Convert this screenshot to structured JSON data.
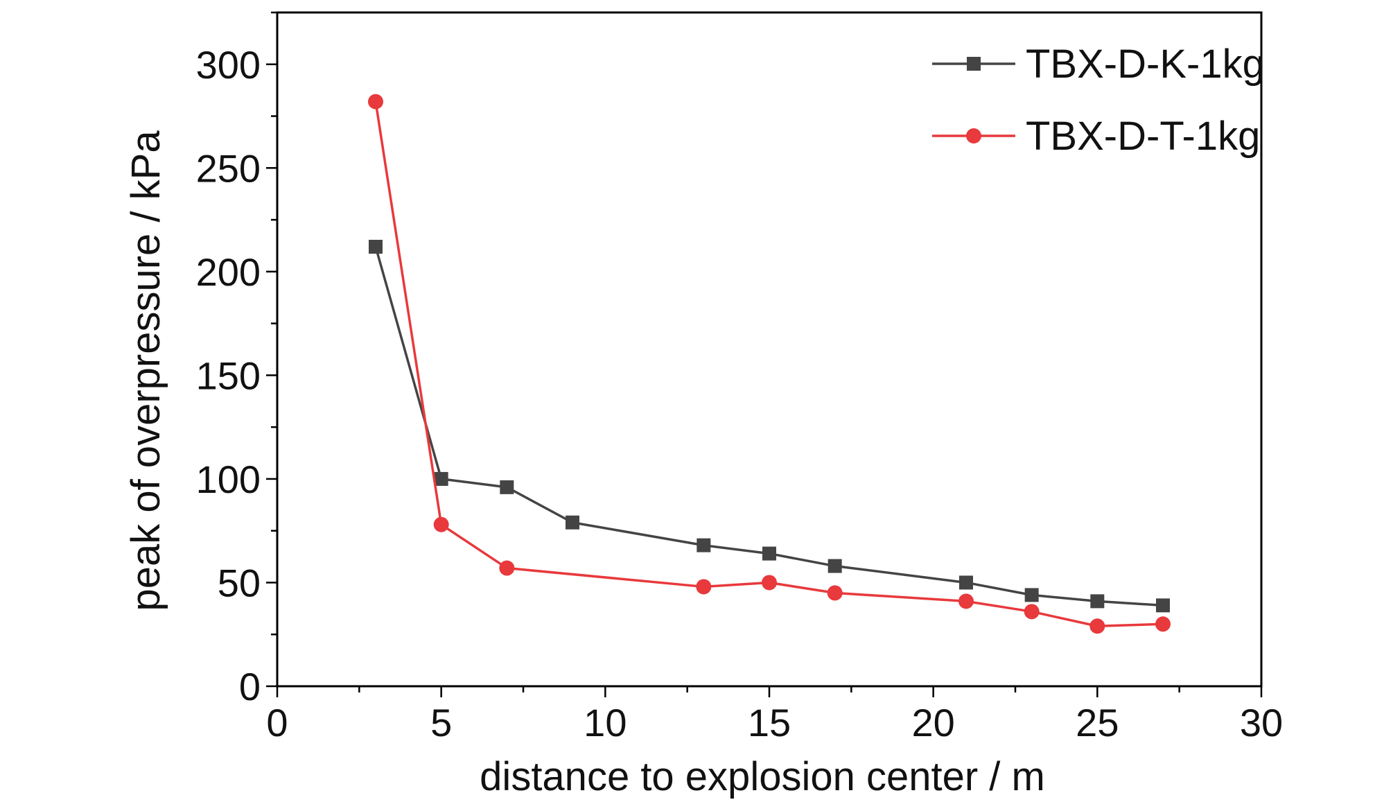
{
  "chart_data": {
    "type": "line",
    "title": "",
    "xlabel": "distance to explosion center / m",
    "ylabel": "peak of overpressure / kPa",
    "xlim": [
      0,
      30
    ],
    "ylim": [
      0,
      325
    ],
    "xticks": [
      0,
      5,
      10,
      15,
      20,
      25,
      30
    ],
    "yticks": [
      0,
      50,
      100,
      150,
      200,
      250,
      300
    ],
    "grid": false,
    "legend_position": "top-right",
    "series": [
      {
        "name": "TBX-D-K-1kg",
        "color": "#444444",
        "marker": "square",
        "x": [
          3,
          5,
          7,
          9,
          13,
          15,
          17,
          21,
          23,
          25,
          27
        ],
        "y": [
          212,
          100,
          96,
          79,
          68,
          64,
          58,
          50,
          44,
          41,
          39
        ]
      },
      {
        "name": "TBX-D-T-1kg",
        "color": "#e8393c",
        "marker": "circle",
        "x": [
          3,
          5,
          7,
          13,
          15,
          17,
          21,
          23,
          25,
          27
        ],
        "y": [
          282,
          78,
          57,
          48,
          50,
          45,
          41,
          36,
          29,
          30
        ]
      }
    ]
  }
}
